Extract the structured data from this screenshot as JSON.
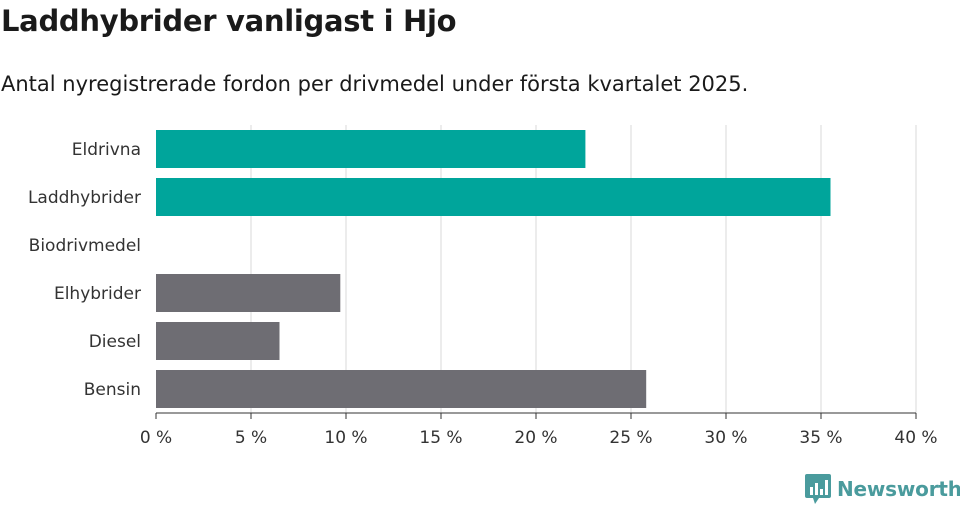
{
  "title": "Laddhybrider vanligast i Hjo",
  "subtitle": "Antal nyregistrerade fordon per drivmedel under första kvartalet 2025.",
  "brand": {
    "name": "Newsworthy",
    "color": "#4a9b9d"
  },
  "chart_data": {
    "type": "bar",
    "orientation": "horizontal",
    "categories": [
      "Eldrivna",
      "Laddhybrider",
      "Biodrivmedel",
      "Elhybrider",
      "Diesel",
      "Bensin"
    ],
    "values": [
      22.6,
      35.5,
      0,
      9.7,
      6.5,
      25.8
    ],
    "colors": [
      "#00a59b",
      "#00a59b",
      "#00a59b",
      "#6e6d73",
      "#6e6d73",
      "#6e6d73"
    ],
    "xlim": [
      0,
      40
    ],
    "xticks": [
      0,
      5,
      10,
      15,
      20,
      25,
      30,
      35,
      40
    ],
    "xtick_labels": [
      "0 %",
      "5 %",
      "10 %",
      "15 %",
      "20 %",
      "25 %",
      "30 %",
      "35 %",
      "40 %"
    ],
    "grid": true,
    "xlabel": "",
    "ylabel": ""
  }
}
